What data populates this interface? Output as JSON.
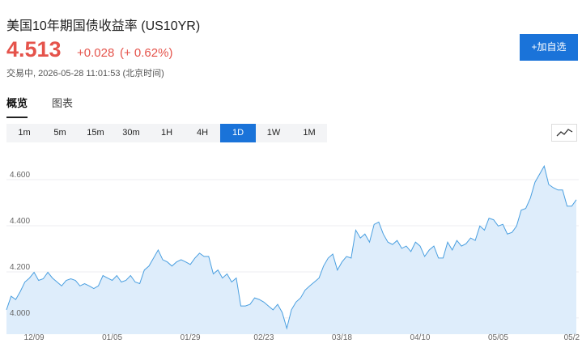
{
  "header": {
    "title": "美国10年期国债收益率 (US10YR)",
    "price": "4.513",
    "change": "+0.028",
    "change_pct": "(+ 0.62%)",
    "status": "交易中, 2026-05-28 11:01:53 (北京时间)",
    "watch_button": "+加自选"
  },
  "tabs": [
    {
      "label": "概览",
      "selected": true
    },
    {
      "label": "图表",
      "selected": false
    }
  ],
  "periods": [
    {
      "label": "1m",
      "selected": false
    },
    {
      "label": "5m",
      "selected": false
    },
    {
      "label": "15m",
      "selected": false
    },
    {
      "label": "30m",
      "selected": false
    },
    {
      "label": "1H",
      "selected": false
    },
    {
      "label": "4H",
      "selected": false
    },
    {
      "label": "1D",
      "selected": true
    },
    {
      "label": "1W",
      "selected": false
    },
    {
      "label": "1M",
      "selected": false
    }
  ],
  "chart_data": {
    "type": "area",
    "color": "#4a9fe0",
    "area_color": "#deedfb",
    "grid": true,
    "categories": [
      null,
      null,
      null,
      null,
      null,
      null,
      "12/09",
      null,
      null,
      null,
      null,
      null,
      null,
      null,
      null,
      null,
      null,
      null,
      null,
      null,
      null,
      null,
      null,
      "01/05",
      null,
      null,
      null,
      null,
      null,
      null,
      null,
      null,
      null,
      null,
      null,
      null,
      null,
      null,
      null,
      null,
      "01/29",
      null,
      null,
      null,
      null,
      null,
      null,
      null,
      null,
      null,
      null,
      null,
      null,
      null,
      null,
      null,
      "02/23",
      null,
      null,
      null,
      null,
      null,
      null,
      null,
      null,
      null,
      null,
      null,
      null,
      null,
      null,
      null,
      null,
      "03/18",
      null,
      null,
      null,
      null,
      null,
      null,
      null,
      null,
      null,
      null,
      null,
      null,
      null,
      null,
      null,
      null,
      "04/10",
      null,
      null,
      null,
      null,
      null,
      null,
      null,
      null,
      null,
      null,
      null,
      null,
      null,
      null,
      null,
      null,
      "05/05",
      null,
      null,
      null,
      null,
      null,
      null,
      null,
      null,
      null,
      null,
      null,
      null,
      null,
      null,
      null,
      "05/2",
      null
    ],
    "values": [
      4.035,
      4.094,
      4.08,
      4.114,
      4.156,
      4.173,
      4.198,
      4.163,
      4.17,
      4.198,
      4.173,
      4.156,
      4.139,
      4.163,
      4.17,
      4.163,
      4.139,
      4.149,
      4.139,
      4.128,
      4.139,
      4.184,
      4.173,
      4.163,
      4.184,
      4.156,
      4.163,
      4.184,
      4.156,
      4.149,
      4.208,
      4.225,
      4.26,
      4.295,
      4.253,
      4.243,
      4.225,
      4.243,
      4.253,
      4.243,
      4.232,
      4.26,
      4.281,
      4.267,
      4.267,
      4.191,
      4.208,
      4.173,
      4.191,
      4.156,
      4.173,
      4.052,
      4.052,
      4.059,
      4.087,
      4.08,
      4.069,
      4.052,
      4.035,
      4.059,
      4.024,
      3.955,
      4.035,
      4.069,
      4.087,
      4.121,
      4.139,
      4.156,
      4.173,
      4.225,
      4.26,
      4.277,
      4.208,
      4.243,
      4.267,
      4.26,
      4.381,
      4.347,
      4.364,
      4.329,
      4.406,
      4.416,
      4.364,
      4.329,
      4.319,
      4.336,
      4.302,
      4.312,
      4.288,
      4.329,
      4.312,
      4.267,
      4.295,
      4.312,
      4.26,
      4.26,
      4.329,
      4.295,
      4.336,
      4.312,
      4.322,
      4.347,
      4.336,
      4.399,
      4.381,
      4.433,
      4.426,
      4.399,
      4.406,
      4.364,
      4.371,
      4.399,
      4.468,
      4.475,
      4.52,
      4.589,
      4.624,
      4.659,
      4.579,
      4.565,
      4.555,
      4.555,
      4.485,
      4.485,
      4.513
    ],
    "ylim": [
      3.94,
      4.73
    ],
    "yticks": [
      {
        "value": 4,
        "label": "4.000"
      },
      {
        "value": 4.2,
        "label": "4.200"
      },
      {
        "value": 4.4,
        "label": "4.400"
      },
      {
        "value": 4.6,
        "label": "4.600"
      }
    ]
  }
}
